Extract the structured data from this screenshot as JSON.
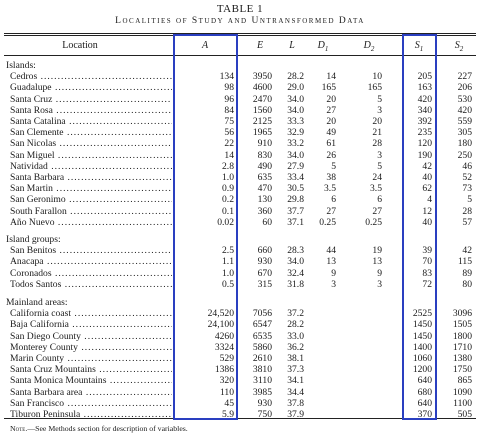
{
  "title": "TABLE 1",
  "subtitle": "Localities of Study and Untransformed Data",
  "headers": {
    "location": "Location",
    "A": "A",
    "E": "E",
    "L": "L",
    "D1": "D",
    "D1_sub": "1",
    "D2": "D",
    "D2_sub": "2",
    "S1": "S",
    "S1_sub": "1",
    "S2": "S",
    "S2_sub": "2"
  },
  "sections": [
    {
      "name": "Islands:",
      "rows": [
        [
          "Cedros",
          "134",
          "3950",
          "28.2",
          "14",
          "10",
          "205",
          "227"
        ],
        [
          "Guadalupe",
          "98",
          "4600",
          "29.0",
          "165",
          "165",
          "163",
          "206"
        ],
        [
          "Santa Cruz",
          "96",
          "2470",
          "34.0",
          "20",
          "5",
          "420",
          "530"
        ],
        [
          "Santa Rosa",
          "84",
          "1560",
          "34.0",
          "27",
          "3",
          "340",
          "420"
        ],
        [
          "Santa Catalina",
          "75",
          "2125",
          "33.3",
          "20",
          "20",
          "392",
          "559"
        ],
        [
          "San Clemente",
          "56",
          "1965",
          "32.9",
          "49",
          "21",
          "235",
          "305"
        ],
        [
          "San Nicolas",
          "22",
          "910",
          "33.2",
          "61",
          "28",
          "120",
          "180"
        ],
        [
          "San Miguel",
          "14",
          "830",
          "34.0",
          "26",
          "3",
          "190",
          "250"
        ],
        [
          "Natividad",
          "2.8",
          "490",
          "27.9",
          "5",
          "5",
          "42",
          "46"
        ],
        [
          "Santa Barbara",
          "1.0",
          "635",
          "33.4",
          "38",
          "24",
          "40",
          "52"
        ],
        [
          "San Martin",
          "0.9",
          "470",
          "30.5",
          "3.5",
          "3.5",
          "62",
          "73"
        ],
        [
          "San Geronimo",
          "0.2",
          "130",
          "29.8",
          "6",
          "6",
          "4",
          "5"
        ],
        [
          "South Farallon",
          "0.1",
          "360",
          "37.7",
          "27",
          "27",
          "12",
          "28"
        ],
        [
          "Año Nuevo",
          "0.02",
          "60",
          "37.1",
          "0.25",
          "0.25",
          "40",
          "57"
        ]
      ]
    },
    {
      "name": "Island groups:",
      "rows": [
        [
          "San Benitos",
          "2.5",
          "660",
          "28.3",
          "44",
          "19",
          "39",
          "42"
        ],
        [
          "Anacapa",
          "1.1",
          "930",
          "34.0",
          "13",
          "13",
          "70",
          "115"
        ],
        [
          "Coronados",
          "1.0",
          "670",
          "32.4",
          "9",
          "9",
          "83",
          "89"
        ],
        [
          "Todos Santos",
          "0.5",
          "315",
          "31.8",
          "3",
          "3",
          "72",
          "80"
        ]
      ]
    },
    {
      "name": "Mainland areas:",
      "rows": [
        [
          "California coast",
          "24,520",
          "7056",
          "37.2",
          "",
          "",
          "2525",
          "3096"
        ],
        [
          "Baja California",
          "24,100",
          "6547",
          "28.2",
          "",
          "",
          "1450",
          "1505"
        ],
        [
          "San Diego County",
          "4260",
          "6535",
          "33.0",
          "",
          "",
          "1450",
          "1800"
        ],
        [
          "Monterey County",
          "3324",
          "5860",
          "36.2",
          "",
          "",
          "1400",
          "1710"
        ],
        [
          "Marin County",
          "529",
          "2610",
          "38.1",
          "",
          "",
          "1060",
          "1380"
        ],
        [
          "Santa Cruz Mountains",
          "1386",
          "3810",
          "37.3",
          "",
          "",
          "1200",
          "1750"
        ],
        [
          "Santa Monica Mountains",
          "320",
          "3110",
          "34.1",
          "",
          "",
          "640",
          "865"
        ],
        [
          "Santa Barbara area",
          "110",
          "3985",
          "34.4",
          "",
          "",
          "680",
          "1090"
        ],
        [
          "San Francisco",
          "45",
          "930",
          "37.8",
          "",
          "",
          "640",
          "1100"
        ],
        [
          "Tiburon Peninsula",
          "5.9",
          "750",
          "37.9",
          "",
          "",
          "370",
          "505"
        ]
      ]
    }
  ],
  "note_prefix": "Note.",
  "note_text": "—See Methods section for description of variables.",
  "highlight_color": "#2a3fc0"
}
